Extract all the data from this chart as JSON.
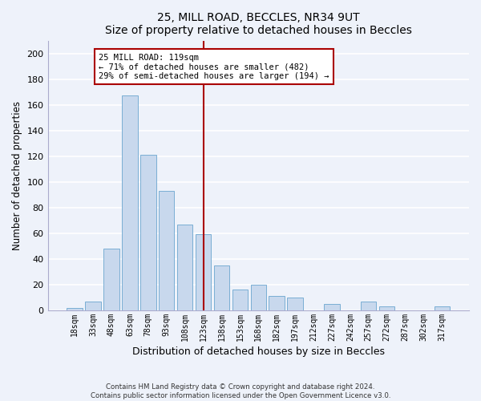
{
  "title1": "25, MILL ROAD, BECCLES, NR34 9UT",
  "title2": "Size of property relative to detached houses in Beccles",
  "xlabel": "Distribution of detached houses by size in Beccles",
  "ylabel": "Number of detached properties",
  "bar_labels": [
    "18sqm",
    "33sqm",
    "48sqm",
    "63sqm",
    "78sqm",
    "93sqm",
    "108sqm",
    "123sqm",
    "138sqm",
    "153sqm",
    "168sqm",
    "182sqm",
    "197sqm",
    "212sqm",
    "227sqm",
    "242sqm",
    "257sqm",
    "272sqm",
    "287sqm",
    "302sqm",
    "317sqm"
  ],
  "bar_values": [
    2,
    7,
    48,
    167,
    121,
    93,
    67,
    59,
    35,
    16,
    20,
    11,
    10,
    0,
    5,
    0,
    7,
    3,
    0,
    0,
    3
  ],
  "bar_color": "#c8d8ed",
  "bar_edge_color": "#7aaed4",
  "vline_index": 7,
  "vline_color": "#aa0000",
  "ylim": [
    0,
    210
  ],
  "yticks": [
    0,
    20,
    40,
    60,
    80,
    100,
    120,
    140,
    160,
    180,
    200
  ],
  "annotation_title": "25 MILL ROAD: 119sqm",
  "annotation_line1": "← 71% of detached houses are smaller (482)",
  "annotation_line2": "29% of semi-detached houses are larger (194) →",
  "annotation_box_facecolor": "#ffffff",
  "annotation_border_color": "#aa0000",
  "footer_line1": "Contains HM Land Registry data © Crown copyright and database right 2024.",
  "footer_line2": "Contains public sector information licensed under the Open Government Licence v3.0.",
  "background_color": "#eef2fa",
  "grid_color": "#ffffff",
  "spine_color": "#aaaacc"
}
